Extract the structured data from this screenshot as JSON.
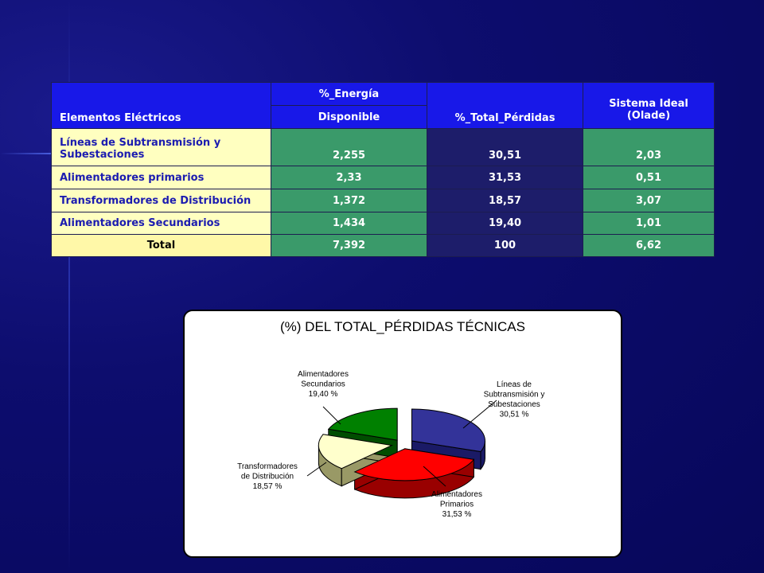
{
  "table": {
    "header": {
      "col1": "Elementos Eléctricos",
      "col2_top": "%_Energía",
      "col2_sub": "Disponible",
      "col3": "%_Total_Pérdidas",
      "col4_line1": "Sistema Ideal",
      "col4_line2": "(Olade)"
    },
    "rows": [
      {
        "label": "Líneas de Subtransmisión y Subestaciones",
        "energia": "2,255",
        "perdidas": "30,51",
        "ideal": "2,03"
      },
      {
        "label": "Alimentadores primarios",
        "energia": "2,33",
        "perdidas": "31,53",
        "ideal": "0,51"
      },
      {
        "label": "Transformadores de Distribución",
        "energia": "1,372",
        "perdidas": "18,57",
        "ideal": "3,07"
      },
      {
        "label": "Alimentadores Secundarios",
        "energia": "1,434",
        "perdidas": "19,40",
        "ideal": "1,01"
      },
      {
        "label": "Total",
        "energia": "7,392",
        "perdidas": "100",
        "ideal": "6,62"
      }
    ]
  },
  "chart_data": {
    "type": "pie",
    "title": "(%) DEL TOTAL_PÉRDIDAS TÉCNICAS",
    "slices": [
      {
        "label_lines": [
          "Líneas de",
          "Subtransmisión y",
          "Subestaciones",
          "30,51 %"
        ],
        "value": 30.51,
        "color": "#333399"
      },
      {
        "label_lines": [
          "Alimentadores",
          "Primarios",
          "31,53 %"
        ],
        "value": 31.53,
        "color": "#ff0000"
      },
      {
        "label_lines": [
          "Transformadores",
          "de Distribución",
          "18,57 %"
        ],
        "value": 18.57,
        "color": "#ffffcc"
      },
      {
        "label_lines": [
          "Alimentadores",
          "Secundarios",
          "19,40 %"
        ],
        "value": 19.4,
        "color": "#008000"
      }
    ]
  }
}
